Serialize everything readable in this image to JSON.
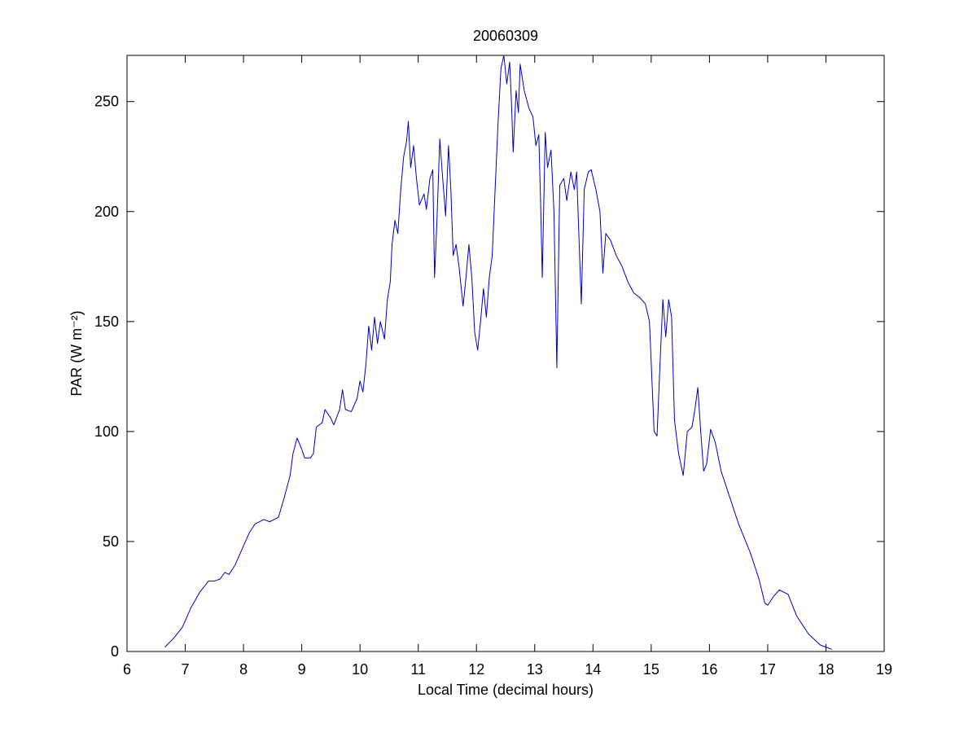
{
  "chart_data": {
    "type": "line",
    "title": "20060309",
    "xlabel": "Local Time (decimal hours)",
    "ylabel": "PAR (W m⁻²)",
    "color": "#0000c0",
    "x": [
      6.65,
      6.8,
      6.95,
      7.1,
      7.25,
      7.4,
      7.5,
      7.6,
      7.68,
      7.75,
      7.85,
      8.0,
      8.1,
      8.2,
      8.35,
      8.45,
      8.6,
      8.7,
      8.8,
      8.85,
      8.92,
      9.0,
      9.05,
      9.15,
      9.2,
      9.25,
      9.35,
      9.4,
      9.5,
      9.55,
      9.65,
      9.7,
      9.75,
      9.85,
      9.95,
      10.0,
      10.05,
      10.1,
      10.15,
      10.2,
      10.25,
      10.3,
      10.35,
      10.42,
      10.47,
      10.52,
      10.55,
      10.6,
      10.65,
      10.7,
      10.75,
      10.8,
      10.83,
      10.87,
      10.92,
      10.97,
      11.02,
      11.1,
      11.14,
      11.2,
      11.25,
      11.28,
      11.32,
      11.37,
      11.42,
      11.47,
      11.52,
      11.56,
      11.6,
      11.65,
      11.7,
      11.77,
      11.82,
      11.87,
      11.92,
      11.97,
      12.02,
      12.07,
      12.12,
      12.17,
      12.22,
      12.27,
      12.32,
      12.37,
      12.42,
      12.47,
      12.52,
      12.57,
      12.6,
      12.63,
      12.68,
      12.72,
      12.75,
      12.82,
      12.9,
      12.97,
      13.02,
      13.07,
      13.1,
      13.13,
      13.18,
      13.22,
      13.28,
      13.33,
      13.38,
      13.43,
      13.5,
      13.55,
      13.62,
      13.68,
      13.72,
      13.8,
      13.85,
      13.92,
      13.97,
      14.05,
      14.12,
      14.17,
      14.22,
      14.3,
      14.4,
      14.5,
      14.6,
      14.7,
      14.8,
      14.9,
      14.97,
      15.05,
      15.1,
      15.15,
      15.2,
      15.25,
      15.3,
      15.35,
      15.4,
      15.47,
      15.55,
      15.62,
      15.7,
      15.75,
      15.8,
      15.85,
      15.9,
      15.95,
      16.02,
      16.1,
      16.2,
      16.35,
      16.5,
      16.7,
      16.85,
      16.95,
      17.0,
      17.1,
      17.2,
      17.35,
      17.5,
      17.7,
      17.9,
      18.1
    ],
    "values": [
      2,
      6,
      11,
      20,
      27,
      32,
      32,
      33,
      36,
      35,
      39,
      48,
      54,
      58,
      60,
      59,
      61,
      70,
      80,
      90,
      97,
      92,
      88,
      88,
      90,
      102,
      104,
      110,
      106,
      103,
      110,
      119,
      110,
      109,
      115,
      123,
      118,
      130,
      148,
      137,
      152,
      140,
      150,
      142,
      160,
      168,
      185,
      196,
      190,
      210,
      225,
      232,
      241,
      220,
      230,
      215,
      203,
      208,
      201,
      215,
      219,
      170,
      195,
      233,
      215,
      198,
      230,
      210,
      180,
      185,
      175,
      157,
      170,
      185,
      170,
      145,
      137,
      150,
      165,
      152,
      170,
      180,
      210,
      240,
      265,
      271,
      258,
      268,
      250,
      227,
      255,
      245,
      267,
      255,
      247,
      243,
      230,
      235,
      205,
      170,
      236,
      220,
      228,
      200,
      129,
      212,
      215,
      205,
      218,
      210,
      218,
      158,
      210,
      218,
      219,
      210,
      200,
      172,
      190,
      187,
      180,
      175,
      168,
      163,
      161,
      158,
      150,
      100,
      98,
      130,
      160,
      143,
      160,
      152,
      105,
      90,
      80,
      100,
      102,
      110,
      120,
      100,
      82,
      85,
      101,
      95,
      82,
      70,
      58,
      45,
      33,
      22,
      21,
      25,
      28,
      26,
      16,
      8,
      3,
      1
    ],
    "xlim": [
      6,
      19
    ],
    "xticks": [
      6,
      7,
      8,
      9,
      10,
      11,
      12,
      13,
      14,
      15,
      16,
      17,
      18,
      19
    ],
    "ylim": [
      0,
      271
    ],
    "yticks": [
      0,
      50,
      100,
      150,
      200,
      250
    ]
  }
}
